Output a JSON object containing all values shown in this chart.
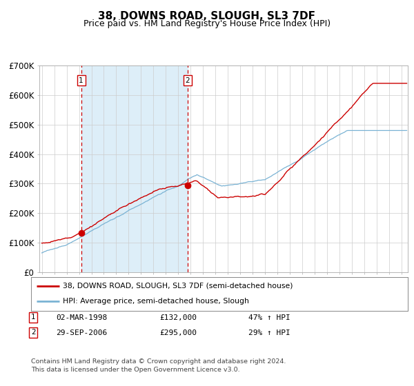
{
  "title": "38, DOWNS ROAD, SLOUGH, SL3 7DF",
  "subtitle": "Price paid vs. HM Land Registry's House Price Index (HPI)",
  "legend_line1": "38, DOWNS ROAD, SLOUGH, SL3 7DF (semi-detached house)",
  "legend_line2": "HPI: Average price, semi-detached house, Slough",
  "footer1": "Contains HM Land Registry data © Crown copyright and database right 2024.",
  "footer2": "This data is licensed under the Open Government Licence v3.0.",
  "transaction1_label": "1",
  "transaction1_date": "02-MAR-1998",
  "transaction1_price": "£132,000",
  "transaction1_hpi": "47% ↑ HPI",
  "transaction2_label": "2",
  "transaction2_date": "29-SEP-2006",
  "transaction2_price": "£295,000",
  "transaction2_hpi": "29% ↑ HPI",
  "sale1_year": 1998.17,
  "sale1_price": 132000,
  "sale2_year": 2006.75,
  "sale2_price": 295000,
  "red_line_color": "#cc0000",
  "blue_line_color": "#7ab3d4",
  "shading_color": "#ddeef8",
  "dashed_line_color": "#cc0000",
  "ylim": [
    0,
    700000
  ],
  "yticks": [
    0,
    100000,
    200000,
    300000,
    400000,
    500000,
    600000,
    700000
  ],
  "ytick_labels": [
    "£0",
    "£100K",
    "£200K",
    "£300K",
    "£400K",
    "£500K",
    "£600K",
    "£700K"
  ],
  "xmin": 1995.0,
  "xmax": 2024.5,
  "background_color": "#ffffff",
  "grid_color": "#cccccc",
  "title_fontsize": 11,
  "subtitle_fontsize": 9,
  "axis_fontsize": 8.5
}
